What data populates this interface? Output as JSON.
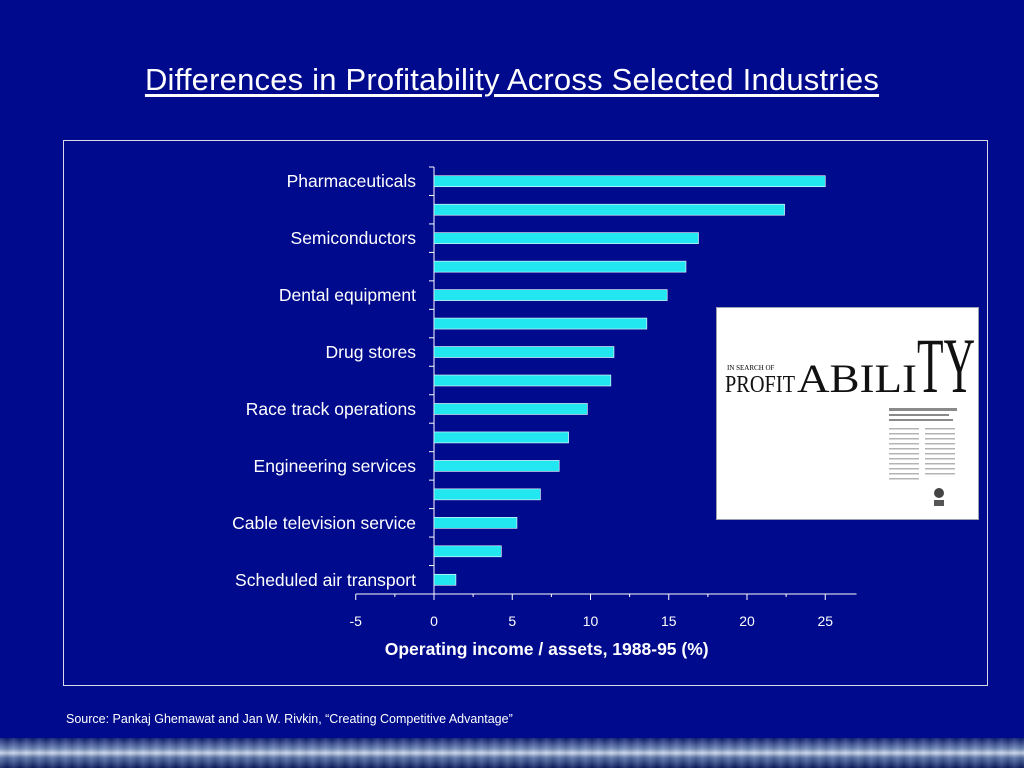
{
  "slide": {
    "title": "Differences in Profitability Across Selected Industries",
    "source": "Source:  Pankaj Ghemawat and Jan W. Rivkin, “Creating Competitive Advantage”"
  },
  "colors": {
    "background": "#000a8c",
    "bar": "#22e6f0",
    "text": "#ffffff"
  },
  "chart_data": {
    "type": "bar",
    "orientation": "horizontal",
    "title": "",
    "xlabel": "Operating income / assets, 1988-95 (%)",
    "ylabel": "",
    "xlim": [
      -5,
      27
    ],
    "xticks": [
      -5,
      0,
      5,
      10,
      15,
      20,
      25
    ],
    "categories": [
      "Pharmaceuticals",
      "",
      "Semiconductors",
      "",
      "Dental equipment",
      "",
      "Drug stores",
      "",
      "Race track operations",
      "",
      "Engineering services",
      "",
      "Cable television service",
      "",
      "Scheduled air transport"
    ],
    "values": [
      25.0,
      22.4,
      16.9,
      16.1,
      14.9,
      13.6,
      11.5,
      11.3,
      9.8,
      8.6,
      8.0,
      6.8,
      5.3,
      4.3,
      1.4
    ],
    "grid": false,
    "legend": "none"
  },
  "inset": {
    "label_word": "PROFITABILITY",
    "icon": "magazine-clipping-icon"
  }
}
